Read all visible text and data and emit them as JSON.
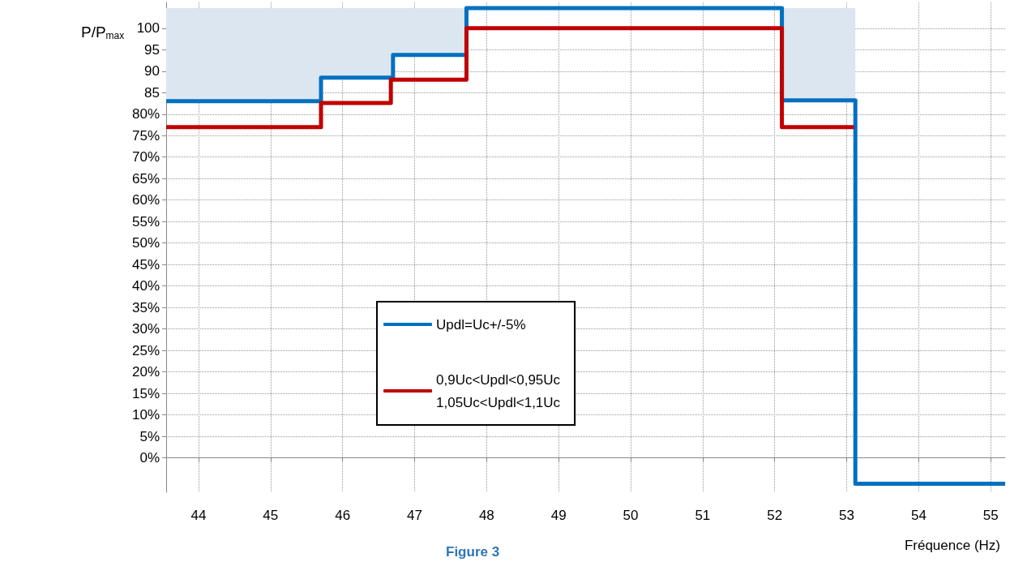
{
  "chart_data": {
    "type": "step",
    "title": "Figure 3",
    "xlabel": "Fréquence (Hz)",
    "ylabel": "P/P$_{max}$",
    "xlim": [
      43.55,
      55.2
    ],
    "xticks": [
      44,
      45,
      46,
      47,
      48,
      49,
      50,
      51,
      52,
      53,
      54,
      55
    ],
    "ylim": [
      -8,
      106
    ],
    "yticks": [
      {
        "value": 0,
        "label": "0%"
      },
      {
        "value": 5,
        "label": "5%"
      },
      {
        "value": 10,
        "label": "10%"
      },
      {
        "value": 15,
        "label": "15%"
      },
      {
        "value": 20,
        "label": "20%"
      },
      {
        "value": 25,
        "label": "25%"
      },
      {
        "value": 30,
        "label": "30%"
      },
      {
        "value": 35,
        "label": "35%"
      },
      {
        "value": 40,
        "label": "40%"
      },
      {
        "value": 45,
        "label": "45%"
      },
      {
        "value": 50,
        "label": "50%"
      },
      {
        "value": 55,
        "label": "55%"
      },
      {
        "value": 60,
        "label": "60%"
      },
      {
        "value": 65,
        "label": "65%"
      },
      {
        "value": 70,
        "label": "70%"
      },
      {
        "value": 75,
        "label": "75%"
      },
      {
        "value": 80,
        "label": "80%"
      },
      85,
      90,
      95,
      100
    ],
    "grid": true,
    "legend": "bottom left",
    "line_style": "solid",
    "marker": "none",
    "series": [
      {
        "name": "Updl=Uc+/-5%",
        "color": "#0070c0",
        "x": [
          43.55,
          45.7,
          46.7,
          47.72,
          52.1,
          53.12,
          55.2
        ],
        "values": [
          83,
          88.5,
          93.8,
          104.7,
          83.2,
          -6,
          -6
        ],
        "lower": [
          83,
          88.5,
          93.8,
          104.7,
          83.2,
          83.2,
          null
        ],
        "upper": [
          104.7,
          104.7,
          104.7,
          104.7,
          104.7,
          104.7,
          null
        ]
      },
      {
        "name": "0,9Uc<Updl<0,95Uc\n1,05Uc<Updl<1,1Uc",
        "color": "#c00000",
        "x": [
          43.55,
          45.7,
          46.67,
          47.72,
          52.1,
          53.1
        ],
        "values": [
          77,
          82.6,
          88,
          100,
          77,
          77
        ]
      }
    ]
  }
}
